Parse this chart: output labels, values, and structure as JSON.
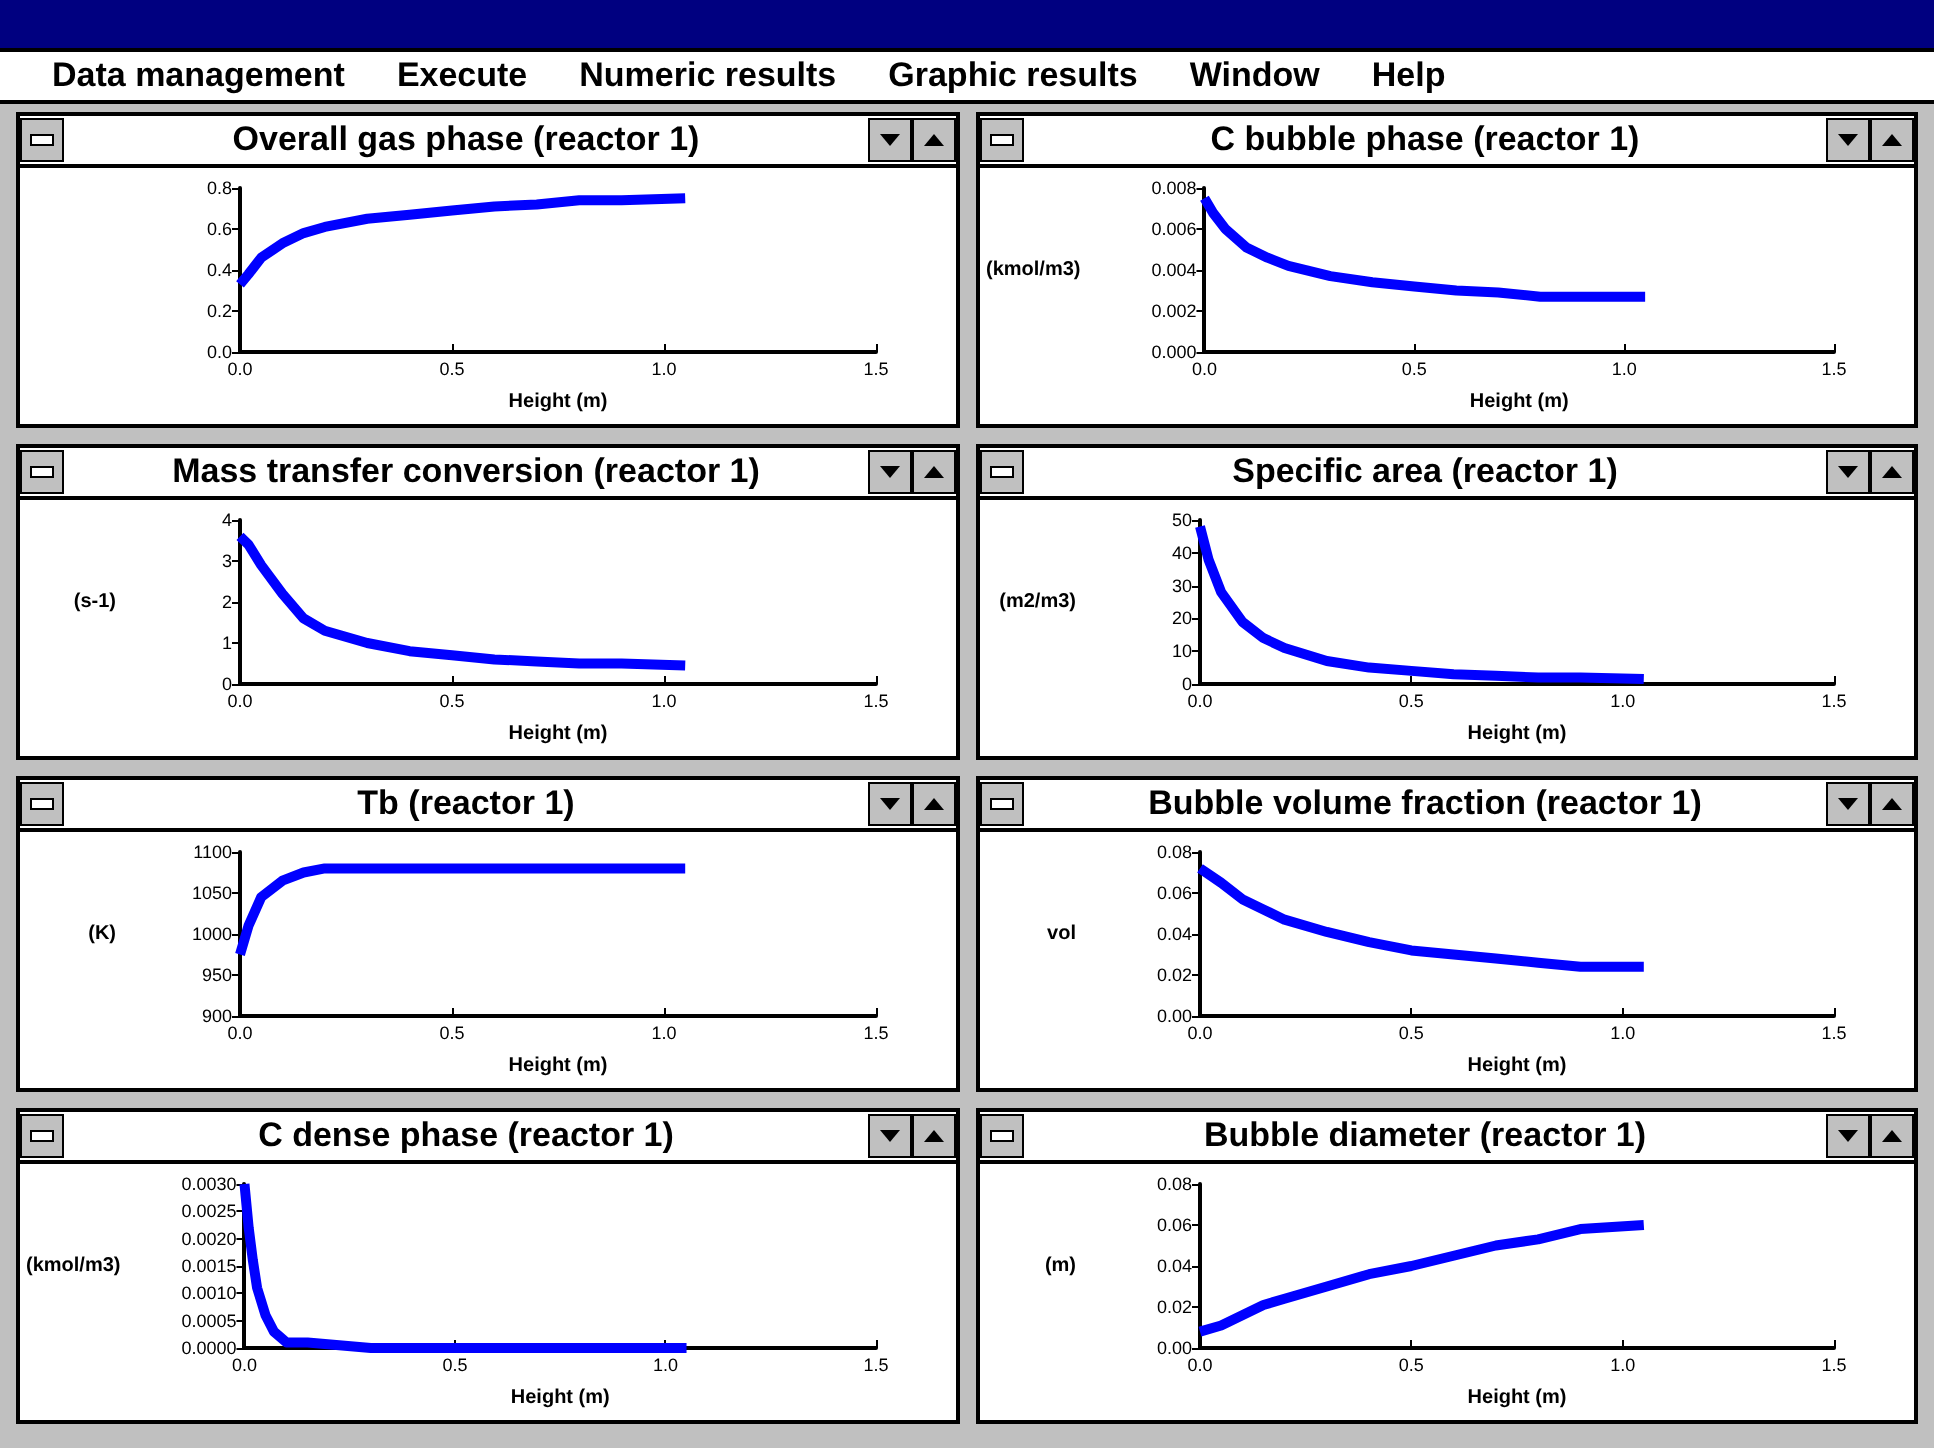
{
  "chart_data": [
    {
      "type": "line",
      "title": "Overall gas phase  (reactor 1)",
      "xlabel": "Height (m)",
      "annotations": [
        "Data management",
        "Execute",
        "Numeric results",
        "Graphic results",
        "Window",
        "Help"
      ],
      "x": [
        0,
        0.02,
        0.05,
        0.1,
        0.15,
        0.2,
        0.3,
        0.4,
        0.5,
        0.6,
        0.7,
        0.8,
        0.9,
        1.05
      ],
      "series": [
        {
          "color": "#0000ff",
          "values": [
            0.33,
            0.38,
            0.46,
            0.53,
            0.58,
            0.61,
            0.65,
            0.67,
            0.69,
            0.71,
            0.72,
            0.74,
            0.74,
            0.75
          ]
        }
      ],
      "xlim": [
        0,
        1.5
      ],
      "xticks": [
        {
          "value": 0,
          "label": "0.0"
        },
        {
          "value": 0.5,
          "label": "0.5"
        },
        {
          "value": 1,
          "label": "1.0"
        },
        {
          "value": 1.5,
          "label": "1.5"
        }
      ],
      "ylim": [
        0,
        0.8
      ],
      "yticks": [
        {
          "value": 0,
          "label": "0.0"
        },
        0.2,
        0.4,
        0.6,
        0.8
      ],
      "marker": "none"
    },
    {
      "type": "line",
      "title": "C bubble phase  (reactor 1)",
      "xlabel": "Height (m)",
      "ylabel": "(kmol/m3)",
      "x": [
        0,
        0.02,
        0.05,
        0.1,
        0.15,
        0.2,
        0.3,
        0.4,
        0.5,
        0.6,
        0.7,
        0.8,
        0.9,
        1.05
      ],
      "series": [
        {
          "color": "#0000ff",
          "values": [
            0.0075,
            0.0068,
            0.006,
            0.0051,
            0.0046,
            0.0042,
            0.0037,
            0.0034,
            0.0032,
            0.003,
            0.0029,
            0.0027,
            0.0027,
            0.0027
          ]
        }
      ],
      "xlim": [
        0,
        1.5
      ],
      "xticks": [
        {
          "value": 0,
          "label": "0.0"
        },
        {
          "value": 0.5,
          "label": "0.5"
        },
        {
          "value": 1,
          "label": "1.0"
        },
        {
          "value": 1.5,
          "label": "1.5"
        }
      ],
      "ylim": [
        0,
        0.008
      ],
      "yticks": [
        {
          "value": 0,
          "label": "0.000"
        },
        {
          "value": 0.002,
          "label": "0.002"
        },
        {
          "value": 0.004,
          "label": "0.004"
        },
        {
          "value": 0.006,
          "label": "0.006"
        },
        {
          "value": 0.008,
          "label": "0.008"
        }
      ],
      "marker": "none"
    },
    {
      "type": "line",
      "title": "Mass transfer conversion  (reactor 1)",
      "xlabel": "Height (m)",
      "ylabel": "(s-1)",
      "x": [
        0,
        0.02,
        0.05,
        0.1,
        0.15,
        0.2,
        0.3,
        0.4,
        0.5,
        0.6,
        0.7,
        0.8,
        0.9,
        1.05
      ],
      "series": [
        {
          "color": "#0000ff",
          "values": [
            3.6,
            3.4,
            2.9,
            2.2,
            1.6,
            1.3,
            1.0,
            0.8,
            0.7,
            0.6,
            0.55,
            0.5,
            0.5,
            0.45
          ]
        }
      ],
      "xlim": [
        0,
        1.5
      ],
      "xticks": [
        {
          "value": 0,
          "label": "0.0"
        },
        {
          "value": 0.5,
          "label": "0.5"
        },
        {
          "value": 1,
          "label": "1.0"
        },
        {
          "value": 1.5,
          "label": "1.5"
        }
      ],
      "ylim": [
        0,
        4
      ],
      "yticks": [
        0,
        1,
        2,
        3,
        4
      ],
      "marker": "none"
    },
    {
      "type": "line",
      "title": "Specific area  (reactor 1)",
      "xlabel": "Height (m)",
      "ylabel": "(m2/m3)",
      "x": [
        0,
        0.02,
        0.05,
        0.1,
        0.15,
        0.2,
        0.3,
        0.4,
        0.5,
        0.6,
        0.7,
        0.8,
        0.9,
        1.05
      ],
      "series": [
        {
          "color": "#0000ff",
          "values": [
            48,
            38,
            28,
            19,
            14,
            11,
            7,
            5,
            4,
            3,
            2.5,
            2,
            2,
            1.5
          ]
        }
      ],
      "xlim": [
        0,
        1.5
      ],
      "xticks": [
        {
          "value": 0,
          "label": "0.0"
        },
        {
          "value": 0.5,
          "label": "0.5"
        },
        {
          "value": 1,
          "label": "1.0"
        },
        {
          "value": 1.5,
          "label": "1.5"
        }
      ],
      "ylim": [
        0,
        50
      ],
      "yticks": [
        0,
        10,
        20,
        30,
        40,
        50
      ],
      "marker": "none"
    },
    {
      "type": "line",
      "title": "Tb  (reactor 1)",
      "xlabel": "Height (m)",
      "ylabel": "(K)",
      "x": [
        0,
        0.02,
        0.05,
        0.1,
        0.15,
        0.2,
        0.3,
        0.4,
        0.5,
        0.6,
        0.7,
        0.8,
        0.9,
        1.05
      ],
      "series": [
        {
          "color": "#0000ff",
          "values": [
            975,
            1010,
            1045,
            1065,
            1075,
            1080,
            1080,
            1080,
            1080,
            1080,
            1080,
            1080,
            1080,
            1080
          ]
        }
      ],
      "xlim": [
        0,
        1.5
      ],
      "xticks": [
        {
          "value": 0,
          "label": "0.0"
        },
        {
          "value": 0.5,
          "label": "0.5"
        },
        {
          "value": 1,
          "label": "1.0"
        },
        {
          "value": 1.5,
          "label": "1.5"
        }
      ],
      "ylim": [
        900,
        1100
      ],
      "yticks": [
        900,
        950,
        1000,
        1050,
        1100
      ],
      "marker": "none"
    },
    {
      "type": "line",
      "title": "Bubble volume fraction  (reactor 1)",
      "xlabel": "Height (m)",
      "ylabel": "vol",
      "x": [
        0,
        0.05,
        0.1,
        0.15,
        0.2,
        0.3,
        0.4,
        0.5,
        0.6,
        0.7,
        0.8,
        0.9,
        1.05
      ],
      "series": [
        {
          "color": "#0000ff",
          "values": [
            0.072,
            0.065,
            0.057,
            0.052,
            0.047,
            0.041,
            0.036,
            0.032,
            0.03,
            0.028,
            0.026,
            0.024,
            0.024
          ]
        }
      ],
      "xlim": [
        0,
        1.5
      ],
      "xticks": [
        {
          "value": 0,
          "label": "0.0"
        },
        {
          "value": 0.5,
          "label": "0.5"
        },
        {
          "value": 1,
          "label": "1.0"
        },
        {
          "value": 1.5,
          "label": "1.5"
        }
      ],
      "ylim": [
        0,
        0.08
      ],
      "yticks": [
        {
          "value": 0,
          "label": "0.00"
        },
        {
          "value": 0.02,
          "label": "0.02"
        },
        {
          "value": 0.04,
          "label": "0.04"
        },
        {
          "value": 0.06,
          "label": "0.06"
        },
        {
          "value": 0.08,
          "label": "0.08"
        }
      ],
      "marker": "none"
    },
    {
      "type": "line",
      "title": "C dense phase  (reactor 1)",
      "xlabel": "Height (m)",
      "ylabel": "(kmol/m3)",
      "x": [
        0,
        0.01,
        0.02,
        0.03,
        0.05,
        0.07,
        0.1,
        0.15,
        0.3,
        0.5,
        1.05
      ],
      "series": [
        {
          "color": "#0000ff",
          "values": [
            0.003,
            0.0022,
            0.0016,
            0.0011,
            0.0006,
            0.0003,
            0.0001,
            0.0001,
            0,
            0,
            0
          ]
        }
      ],
      "xlim": [
        0,
        1.5
      ],
      "xticks": [
        {
          "value": 0,
          "label": "0.0"
        },
        {
          "value": 0.5,
          "label": "0.5"
        },
        {
          "value": 1,
          "label": "1.0"
        },
        {
          "value": 1.5,
          "label": "1.5"
        }
      ],
      "ylim": [
        0,
        0.003
      ],
      "yticks": [
        {
          "value": 0,
          "label": "0.0000"
        },
        {
          "value": 0.0005,
          "label": "0.0005"
        },
        {
          "value": 0.001,
          "label": "0.0010"
        },
        {
          "value": 0.0015,
          "label": "0.0015"
        },
        {
          "value": 0.002,
          "label": "0.0020"
        },
        {
          "value": 0.0025,
          "label": "0.0025"
        },
        {
          "value": 0.003,
          "label": "0.0030"
        }
      ],
      "marker": "none"
    },
    {
      "type": "line",
      "title": "Bubble diameter  (reactor 1)",
      "xlabel": "Height (m)",
      "ylabel": "(m)",
      "x": [
        0,
        0.05,
        0.1,
        0.15,
        0.2,
        0.3,
        0.4,
        0.5,
        0.6,
        0.7,
        0.8,
        0.9,
        1.05
      ],
      "series": [
        {
          "color": "#0000ff",
          "values": [
            0.008,
            0.011,
            0.016,
            0.021,
            0.024,
            0.03,
            0.036,
            0.04,
            0.045,
            0.05,
            0.053,
            0.058,
            0.06
          ]
        }
      ],
      "xlim": [
        0,
        1.5
      ],
      "xticks": [
        {
          "value": 0,
          "label": "0.0"
        },
        {
          "value": 0.5,
          "label": "0.5"
        },
        {
          "value": 1,
          "label": "1.0"
        },
        {
          "value": 1.5,
          "label": "1.5"
        }
      ],
      "ylim": [
        0,
        0.08
      ],
      "yticks": [
        {
          "value": 0,
          "label": "0.00"
        },
        {
          "value": 0.02,
          "label": "0.02"
        },
        {
          "value": 0.04,
          "label": "0.04"
        },
        {
          "value": 0.06,
          "label": "0.06"
        },
        {
          "value": 0.08,
          "label": "0.08"
        }
      ],
      "marker": "none"
    }
  ]
}
